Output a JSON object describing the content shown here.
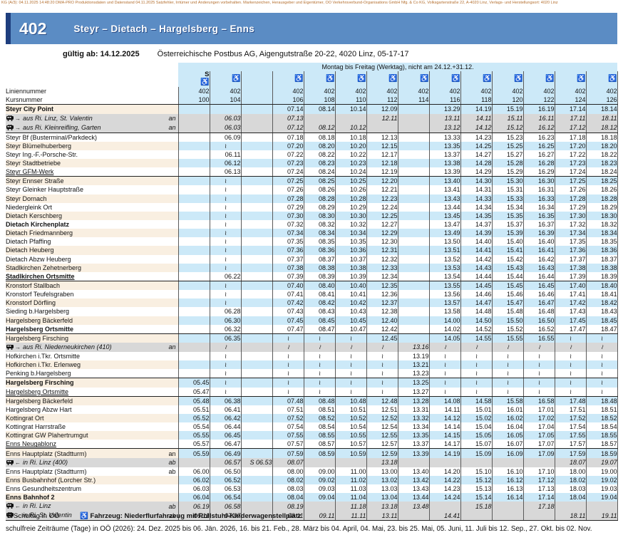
{
  "fineprint": "KG (A/3): 04.11.2025 14:48:20 DMA-PRO Produktionsdaten und Datenstand 04.11.2025 Satzfehler, Irrtümer und Änderungen vorbehalten. Markenzeichen, Herausgeber und Eigentümer, OÖ Verkehrsverbund-Organisations GmbH Nfg. & Co KG, Volksgartenstraße 22, A-4020 Linz, Verlags- und Herstellungsort: 4020 Linz",
  "banner": {
    "line_number": "402",
    "route": "Steyr  –  Dietach  –  Hargelsberg  –  Enns"
  },
  "validity": {
    "valid_from": "gültig ab: 14.12.2025",
    "operator": "Österreichische Postbus AG, Aigengutstraße 20-22, 4020 Linz, 05-17-17"
  },
  "colors": {
    "banner_blue": "#5b8cc4",
    "navy": "#1e3e7e",
    "band_blue": "#cce9f8",
    "cream": "#f9efe1",
    "connection_gray": "#d8d8d8",
    "fineprint_orange": "#b57030"
  },
  "table": {
    "period_header": "Montag bis Freitag (Werktag), nicht am 24.12.+31.12.",
    "line_label": "Liniennummer",
    "course_label": "Kursnummer",
    "wheelchair_symbol": "♿",
    "school_symbol": "S",
    "pass_symbol": "≀",
    "columns": [
      {
        "line": "402",
        "course": "100",
        "wheelchair": true,
        "school": true
      },
      {
        "line": "402",
        "course": "104",
        "wheelchair": true,
        "school": false
      },
      {
        "line": "",
        "course": "",
        "wheelchair": false,
        "school": false
      },
      {
        "line": "402",
        "course": "106",
        "wheelchair": true,
        "school": false
      },
      {
        "line": "402",
        "course": "108",
        "wheelchair": true,
        "school": false
      },
      {
        "line": "402",
        "course": "110",
        "wheelchair": true,
        "school": false
      },
      {
        "line": "402",
        "course": "112",
        "wheelchair": true,
        "school": false
      },
      {
        "line": "402",
        "course": "114",
        "wheelchair": true,
        "school": false
      },
      {
        "line": "402",
        "course": "116",
        "wheelchair": true,
        "school": false
      },
      {
        "line": "402",
        "course": "118",
        "wheelchair": true,
        "school": false
      },
      {
        "line": "402",
        "course": "120",
        "wheelchair": true,
        "school": false
      },
      {
        "line": "402",
        "course": "122",
        "wheelchair": true,
        "school": false
      },
      {
        "line": "402",
        "course": "124",
        "wheelchair": true,
        "school": false
      },
      {
        "line": "402",
        "course": "126",
        "wheelchair": true,
        "school": false
      }
    ],
    "rows": [
      {
        "name": "Steyr City Point",
        "bold": true,
        "times": [
          "",
          "",
          "",
          "07.14",
          "08.14",
          "10.14",
          "12.09",
          "",
          "13.29",
          "14.19",
          "15.19",
          "16.19",
          "17.14",
          "18.14"
        ]
      },
      {
        "name": "aus Ri. Linz, St. Valentin",
        "connection": "train-from",
        "marker": "an",
        "times": [
          "",
          "06.03",
          "",
          "07.13",
          "",
          "",
          "12.11",
          "",
          "13.11",
          "14.11",
          "15.11",
          "16.11",
          "17.11",
          "18.11"
        ]
      },
      {
        "name": "aus Ri. Kleinreifling, Garten",
        "connection": "train-from",
        "marker": "an",
        "rule": true,
        "times": [
          "",
          "06.03",
          "",
          "07.12",
          "08.12",
          "10.12",
          "",
          "",
          "13.12",
          "14.12",
          "15.12",
          "16.12",
          "17.12",
          "18.12"
        ]
      },
      {
        "name": "Steyr Bf (Busterminal/Parkdeck)",
        "times": [
          "",
          "06.09",
          "",
          "07.18",
          "08.18",
          "10.18",
          "12.13",
          "",
          "13.33",
          "14.23",
          "15.23",
          "16.23",
          "17.18",
          "18.18"
        ]
      },
      {
        "name": "Steyr Blümelhuberberg",
        "times": [
          "",
          "≀",
          "",
          "07.20",
          "08.20",
          "10.20",
          "12.15",
          "",
          "13.35",
          "14.25",
          "15.25",
          "16.25",
          "17.20",
          "18.20"
        ]
      },
      {
        "name": "Steyr Ing.-F.-Porsche-Str.",
        "times": [
          "",
          "06.11",
          "",
          "07.22",
          "08.22",
          "10.22",
          "12.17",
          "",
          "13.37",
          "14.27",
          "15.27",
          "16.27",
          "17.22",
          "18.22"
        ]
      },
      {
        "name": "Steyr Stadtbetriebe",
        "times": [
          "",
          "06.12",
          "",
          "07.23",
          "08.23",
          "10.23",
          "12.18",
          "",
          "13.38",
          "14.28",
          "15.28",
          "16.28",
          "17.23",
          "18.23"
        ]
      },
      {
        "name": "Steyr GFM-Werk",
        "underline": true,
        "rule": true,
        "times": [
          "",
          "06.13",
          "",
          "07.24",
          "08.24",
          "10.24",
          "12.19",
          "",
          "13.39",
          "14.29",
          "15.29",
          "16.29",
          "17.24",
          "18.24"
        ]
      },
      {
        "name": "Steyr Ennser Straße",
        "times": [
          "",
          "≀",
          "",
          "07.25",
          "08.25",
          "10.25",
          "12.20",
          "",
          "13.40",
          "14.30",
          "15.30",
          "16.30",
          "17.25",
          "18.25"
        ]
      },
      {
        "name": "Steyr Gleinker Hauptstraße",
        "times": [
          "",
          "≀",
          "",
          "07.26",
          "08.26",
          "10.26",
          "12.21",
          "",
          "13.41",
          "14.31",
          "15.31",
          "16.31",
          "17.26",
          "18.26"
        ]
      },
      {
        "name": "Steyr Dornach",
        "times": [
          "",
          "≀",
          "",
          "07.28",
          "08.28",
          "10.28",
          "12.23",
          "",
          "13.43",
          "14.33",
          "15.33",
          "16.33",
          "17.28",
          "18.28"
        ]
      },
      {
        "name": "Niedergleink Ort",
        "times": [
          "",
          "≀",
          "",
          "07.29",
          "08.29",
          "10.29",
          "12.24",
          "",
          "13.44",
          "14.34",
          "15.34",
          "16.34",
          "17.29",
          "18.29"
        ]
      },
      {
        "name": "Dietach Kerschberg",
        "times": [
          "",
          "≀",
          "",
          "07.30",
          "08.30",
          "10.30",
          "12.25",
          "",
          "13.45",
          "14.35",
          "15.35",
          "16.35",
          "17.30",
          "18.30"
        ]
      },
      {
        "name": "Dietach Kirchenplatz",
        "bold": true,
        "times": [
          "",
          "≀",
          "",
          "07.32",
          "08.32",
          "10.32",
          "12.27",
          "",
          "13.47",
          "14.37",
          "15.37",
          "16.37",
          "17.32",
          "18.32"
        ]
      },
      {
        "name": "Dietach Friedmannberg",
        "times": [
          "",
          "≀",
          "",
          "07.34",
          "08.34",
          "10.34",
          "12.29",
          "",
          "13.49",
          "14.39",
          "15.39",
          "16.39",
          "17.34",
          "18.34"
        ]
      },
      {
        "name": "Dietach Pfaffing",
        "times": [
          "",
          "≀",
          "",
          "07.35",
          "08.35",
          "10.35",
          "12.30",
          "",
          "13.50",
          "14.40",
          "15.40",
          "16.40",
          "17.35",
          "18.35"
        ]
      },
      {
        "name": "Dietach Heuberg",
        "times": [
          "",
          "≀",
          "",
          "07.36",
          "08.36",
          "10.36",
          "12.31",
          "",
          "13.51",
          "14.41",
          "15.41",
          "16.41",
          "17.36",
          "18.36"
        ]
      },
      {
        "name": "Dietach Abzw Heuberg",
        "times": [
          "",
          "≀",
          "",
          "07.37",
          "08.37",
          "10.37",
          "12.32",
          "",
          "13.52",
          "14.42",
          "15.42",
          "16.42",
          "17.37",
          "18.37"
        ]
      },
      {
        "name": "Stadlkirchen Zehetnerberg",
        "times": [
          "",
          "≀",
          "",
          "07.38",
          "08.38",
          "10.38",
          "12.33",
          "",
          "13.53",
          "14.43",
          "15.43",
          "16.43",
          "17.38",
          "18.38"
        ]
      },
      {
        "name": "Stadlkirchen Ortsmitte",
        "bold": true,
        "underline": true,
        "rule": true,
        "times": [
          "",
          "06.22",
          "",
          "07.39",
          "08.39",
          "10.39",
          "12.34",
          "",
          "13.54",
          "14.44",
          "15.44",
          "16.44",
          "17.39",
          "18.39"
        ]
      },
      {
        "name": "Kronstorf Stallbach",
        "times": [
          "",
          "≀",
          "",
          "07.40",
          "08.40",
          "10.40",
          "12.35",
          "",
          "13.55",
          "14.45",
          "15.45",
          "16.45",
          "17.40",
          "18.40"
        ]
      },
      {
        "name": "Kronstorf Teufelsgraben",
        "times": [
          "",
          "≀",
          "",
          "07.41",
          "08.41",
          "10.41",
          "12.36",
          "",
          "13.56",
          "14.46",
          "15.46",
          "16.46",
          "17.41",
          "18.41"
        ]
      },
      {
        "name": "Kronstorf Dörfling",
        "times": [
          "",
          "≀",
          "",
          "07.42",
          "08.42",
          "10.42",
          "12.37",
          "",
          "13.57",
          "14.47",
          "15.47",
          "16.47",
          "17.42",
          "18.42"
        ]
      },
      {
        "name": "Sieding b.Hargelsberg",
        "times": [
          "",
          "06.28",
          "",
          "07.43",
          "08.43",
          "10.43",
          "12.38",
          "",
          "13.58",
          "14.48",
          "15.48",
          "16.48",
          "17.43",
          "18.43"
        ]
      },
      {
        "name": "Hargelsberg Bäckerfeld",
        "times": [
          "",
          "06.30",
          "",
          "07.45",
          "08.45",
          "10.45",
          "12.40",
          "",
          "14.00",
          "14.50",
          "15.50",
          "16.50",
          "17.45",
          "18.45"
        ]
      },
      {
        "name": "Hargelsberg Ortsmitte",
        "bold": true,
        "rule": true,
        "times": [
          "",
          "06.32",
          "",
          "07.47",
          "08.47",
          "10.47",
          "12.42",
          "",
          "14.02",
          "14.52",
          "15.52",
          "16.52",
          "17.47",
          "18.47"
        ]
      },
      {
        "name": "Hargelsberg Firsching",
        "times": [
          "",
          "06.35",
          "",
          "≀",
          "≀",
          "≀",
          "12.45",
          "",
          "14.05",
          "14.55",
          "15.55",
          "16.55",
          "≀",
          "≀"
        ]
      },
      {
        "name": "aus Ri. Niederneukirchen (410)",
        "connection": "bus-from",
        "marker": "an",
        "times": [
          "",
          "≀",
          "",
          "≀",
          "≀",
          "≀",
          "≀",
          "13.16",
          "≀",
          "≀",
          "≀",
          "≀",
          "≀",
          "≀"
        ]
      },
      {
        "name": "Hofkirchen i.Tkr. Ortsmitte",
        "times": [
          "",
          "≀",
          "",
          "≀",
          "≀",
          "≀",
          "≀",
          "13.19",
          "≀",
          "≀",
          "≀",
          "≀",
          "≀",
          "≀"
        ]
      },
      {
        "name": "Hofkirchen i.Tkr. Erlenweg",
        "times": [
          "",
          "≀",
          "",
          "≀",
          "≀",
          "≀",
          "≀",
          "13.21",
          "≀",
          "≀",
          "≀",
          "≀",
          "≀",
          "≀"
        ]
      },
      {
        "name": "Penking b.Hargelsberg",
        "rule": true,
        "times": [
          "",
          "≀",
          "",
          "≀",
          "≀",
          "≀",
          "≀",
          "13.23",
          "≀",
          "≀",
          "≀",
          "≀",
          "≀",
          "≀"
        ]
      },
      {
        "name": "Hargelsberg Firsching",
        "bold": true,
        "times": [
          "05.45",
          "≀",
          "",
          "≀",
          "≀",
          "≀",
          "≀",
          "13.25",
          "≀",
          "≀",
          "≀",
          "≀",
          "≀",
          "≀"
        ]
      },
      {
        "name": "Hargelsberg Ortsmitte",
        "underline": true,
        "rule": true,
        "times": [
          "05.47",
          "≀",
          "",
          "≀",
          "≀",
          "≀",
          "≀",
          "13.27",
          "≀",
          "≀",
          "≀",
          "≀",
          "≀",
          "≀"
        ]
      },
      {
        "name": "Hargelsberg Bäckerfeld",
        "times": [
          "05.48",
          "06.38",
          "",
          "07.48",
          "08.48",
          "10.48",
          "12.48",
          "13.28",
          "14.08",
          "14.58",
          "15.58",
          "16.58",
          "17.48",
          "18.48"
        ]
      },
      {
        "name": "Hargelsberg Abzw Hart",
        "times": [
          "05.51",
          "06.41",
          "",
          "07.51",
          "08.51",
          "10.51",
          "12.51",
          "13.31",
          "14.11",
          "15.01",
          "16.01",
          "17.01",
          "17.51",
          "18.51"
        ]
      },
      {
        "name": "Kottingrat Ort",
        "times": [
          "05.52",
          "06.42",
          "",
          "07.52",
          "08.52",
          "10.52",
          "12.52",
          "13.32",
          "14.12",
          "15.02",
          "16.02",
          "17.02",
          "17.52",
          "18.52"
        ]
      },
      {
        "name": "Kottingrat Harrstraße",
        "times": [
          "05.54",
          "06.44",
          "",
          "07.54",
          "08.54",
          "10.54",
          "12.54",
          "13.34",
          "14.14",
          "15.04",
          "16.04",
          "17.04",
          "17.54",
          "18.54"
        ]
      },
      {
        "name": "Kottingrat GW Plahertrumgut",
        "times": [
          "05.55",
          "06.45",
          "",
          "07.55",
          "08.55",
          "10.55",
          "12.55",
          "13.35",
          "14.15",
          "15.05",
          "16.05",
          "17.05",
          "17.55",
          "18.55"
        ]
      },
      {
        "name": "Enns Neugablonz",
        "underline": true,
        "rule": true,
        "times": [
          "05.57",
          "06.47",
          "",
          "07.57",
          "08.57",
          "10.57",
          "12.57",
          "13.37",
          "14.17",
          "15.07",
          "16.07",
          "17.07",
          "17.57",
          "18.57"
        ]
      },
      {
        "name": "Enns Hauptplatz (Stadtturm)",
        "marker": "an",
        "times": [
          "05.59",
          "06.49",
          "",
          "07.59",
          "08.59",
          "10.59",
          "12.59",
          "13.39",
          "14.19",
          "15.09",
          "16.09",
          "17.09",
          "17.59",
          "18.59"
        ]
      },
      {
        "name": "in Ri. Linz (400)",
        "connection": "bus-to",
        "marker": "ab",
        "times": [
          "",
          "06.57",
          "S 06.53",
          "08.07",
          "",
          "",
          "13.18",
          "",
          "",
          "",
          "",
          "",
          "18.07",
          "19.07"
        ]
      },
      {
        "name": "Enns Hauptplatz (Stadtturm)",
        "marker": "ab",
        "times": [
          "06.00",
          "06.50",
          "",
          "08.00",
          "09.00",
          "11.00",
          "13.00",
          "13.40",
          "14.20",
          "15.10",
          "16.10",
          "17.10",
          "18.00",
          "19.00"
        ]
      },
      {
        "name": "Enns Busbahnhof (Lorcher Str.)",
        "times": [
          "06.02",
          "06.52",
          "",
          "08.02",
          "09.02",
          "11.02",
          "13.02",
          "13.42",
          "14.22",
          "15.12",
          "16.12",
          "17.12",
          "18.02",
          "19.02"
        ]
      },
      {
        "name": "Enns Gesundheitszentrum",
        "times": [
          "06.03",
          "06.53",
          "",
          "08.03",
          "09.03",
          "11.03",
          "13.03",
          "13.43",
          "14.23",
          "15.13",
          "16.13",
          "17.13",
          "18.03",
          "19.03"
        ]
      },
      {
        "name": "Enns Bahnhof 2",
        "bold": true,
        "times": [
          "06.04",
          "06.54",
          "",
          "08.04",
          "09.04",
          "11.04",
          "13.04",
          "13.44",
          "14.24",
          "15.14",
          "16.14",
          "17.14",
          "18.04",
          "19.04"
        ]
      },
      {
        "name": "in Ri. Linz",
        "connection": "train-to",
        "marker": "ab",
        "times": [
          "06.19",
          "06.58",
          "",
          "08.19",
          "",
          "11.18",
          "13.18",
          "13.48",
          "",
          "15.18",
          "",
          "17.18",
          "",
          ""
        ]
      },
      {
        "name": "in Ri. St. Valentin",
        "connection": "train-to",
        "marker": "ab",
        "rule": true,
        "times": [
          "06.11",
          "07.07",
          "",
          "08.11",
          "09.11",
          "11.11",
          "13.11",
          "",
          "14.41",
          "",
          "",
          "",
          "18.11",
          "19.11"
        ]
      }
    ]
  },
  "legend": {
    "school_symbol": "S",
    "school_text": "Schultag in OÖ",
    "wheelchair_symbol": "♿",
    "wheelchair_text": "Fahrzeug: Niederflurfahrzeug mit Rollstuhl-Kinderwagenstellplatz"
  },
  "footnote": "schulfreie Zeiträume (Tage) in OÖ (2026): 24. Dez. 2025 bis 06. Jän. 2026, 16. bis 21. Feb., 28. März bis 04. April, 04. Mai, 23. bis 25. Mai, 05. Juni, 11. Juli bis 12. Sep., 27. Okt. bis 02. Nov."
}
